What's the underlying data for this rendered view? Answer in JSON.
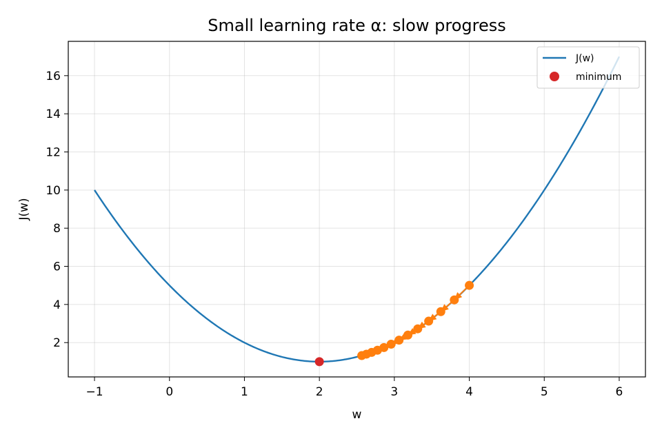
{
  "chart_data": {
    "type": "line",
    "title": "Small learning rate α: slow progress",
    "xlabel": "w",
    "ylabel": "J(w)",
    "xlim": [
      -1.35,
      6.35
    ],
    "ylim": [
      0.2,
      17.8
    ],
    "xticks": [
      -1,
      0,
      1,
      2,
      3,
      4,
      5,
      6
    ],
    "yticks": [
      2,
      4,
      6,
      8,
      10,
      12,
      14,
      16
    ],
    "grid": true,
    "legend_position": "upper right",
    "series": [
      {
        "name": "J(w)",
        "kind": "line",
        "function": "(w-2)^2+1",
        "x_range": [
          -1,
          6
        ],
        "color": "#1f77b4"
      },
      {
        "name": "minimum",
        "kind": "scatter",
        "x": [
          2
        ],
        "y": [
          1
        ],
        "color": "#d62728"
      },
      {
        "kind": "gradient-descent-path",
        "x": [
          4.0,
          3.8,
          3.62,
          3.458,
          3.312,
          3.181,
          3.063,
          2.957,
          2.861,
          2.775,
          2.697,
          2.628,
          2.565
        ],
        "y": [
          5.0,
          4.24,
          3.624,
          3.126,
          2.722,
          2.395,
          2.13,
          1.915,
          1.741,
          1.6,
          1.486,
          1.394,
          1.319
        ],
        "color": "#ff7f0e"
      }
    ]
  }
}
